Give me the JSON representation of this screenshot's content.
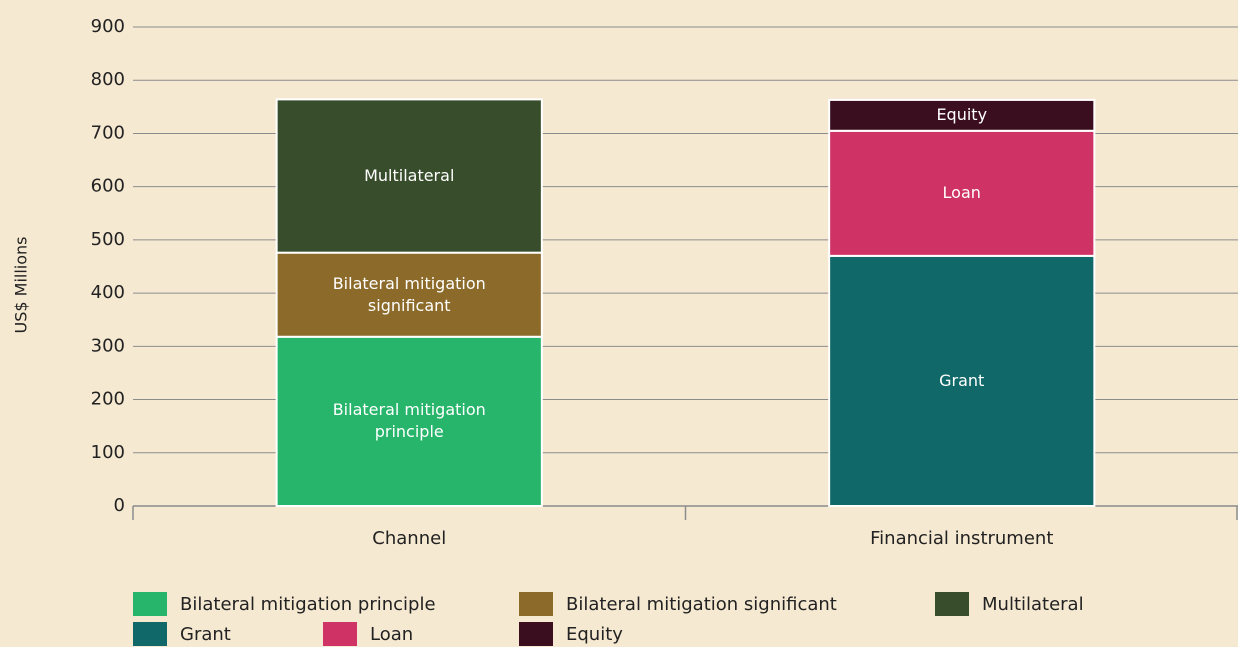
{
  "chart_data": {
    "type": "stacked_bar",
    "y_label": "US$ Millions",
    "categories": [
      "Channel",
      "Financial instrument"
    ],
    "series": [
      {
        "name": "Bilateral mitigation principle",
        "color": "#27b56b",
        "values": [
          318,
          null
        ]
      },
      {
        "name": "Bilateral mitigation significant",
        "color": "#8b6a2a",
        "values": [
          158,
          null
        ]
      },
      {
        "name": "Multilateral",
        "color": "#374d2b",
        "values": [
          288,
          null
        ]
      },
      {
        "name": "Grant",
        "color": "#116868",
        "values": [
          null,
          470
        ]
      },
      {
        "name": "Loan",
        "color": "#cf3366",
        "values": [
          null,
          235
        ]
      },
      {
        "name": "Equity",
        "color": "#3a0e1e",
        "values": [
          null,
          58
        ]
      }
    ],
    "ylim": [
      0,
      900
    ],
    "yticks": [
      0,
      100,
      200,
      300,
      400,
      500,
      600,
      700,
      800,
      900
    ],
    "grid": true,
    "legend": "bottom"
  }
}
